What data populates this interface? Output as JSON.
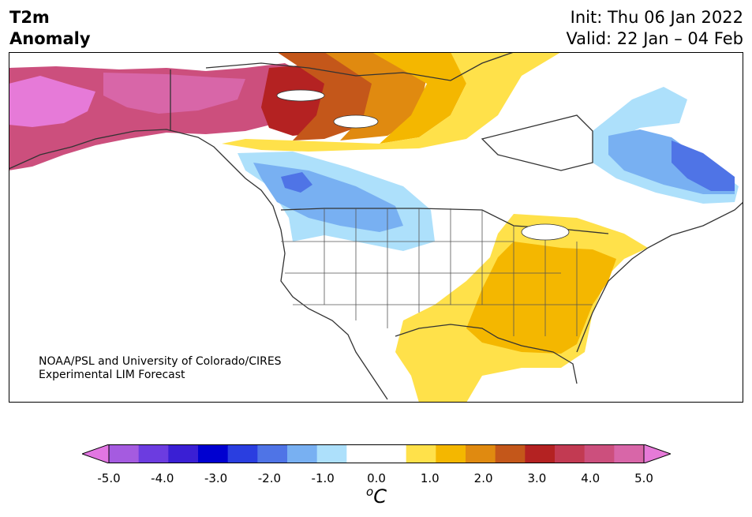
{
  "title": {
    "line1": "T2m",
    "line2": "Anomaly"
  },
  "dates": {
    "init": "Init: Thu 06 Jan 2022",
    "valid": "Valid: 22 Jan – 04 Feb"
  },
  "credit": {
    "line1": "NOAA/PSL and University of Colorado/CIRES",
    "line2": "Experimental LIM Forecast"
  },
  "colorbar": {
    "ticks": [
      "-5.0",
      "-4.0",
      "-3.0",
      "-2.0",
      "-1.0",
      "0.0",
      "1.0",
      "2.0",
      "3.0",
      "4.0",
      "5.0"
    ],
    "unit_super": "o",
    "unit_main": "C",
    "colors": [
      "#e276e2",
      "#a55be0",
      "#6c3ce0",
      "#3a1fd4",
      "#0000d0",
      "#2a3ee0",
      "#4f74e6",
      "#78b0f2",
      "#ade0fb",
      "#ffffff",
      "#ffffff",
      "#ffe14a",
      "#f4b700",
      "#e08a10",
      "#c4571a",
      "#b42222",
      "#c23a52",
      "#cc4f7d",
      "#d866a8",
      "#e67ad8"
    ]
  },
  "map": {
    "fill_colors": {
      "cold_light": "#ade0fb",
      "cold_mid": "#78b0f2",
      "cold_strong": "#4f74e6",
      "warm_light": "#ffe14a",
      "warm_mid": "#f4b700",
      "warm_strong": "#e08a10",
      "warm_red": "#c4571a",
      "hot": "#b42222",
      "pink_dark": "#cc4f7d",
      "pink": "#d866a8",
      "pink_light": "#e67ad8"
    }
  }
}
